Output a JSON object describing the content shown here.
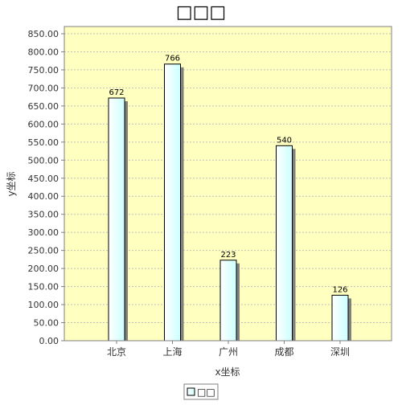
{
  "chart_data": {
    "type": "bar",
    "title": "□□□",
    "xlabel": "x坐标",
    "ylabel": "y坐标",
    "categories": [
      "北京",
      "上海",
      "广州",
      "成都",
      "深圳"
    ],
    "values": [
      672,
      766,
      223,
      540,
      126
    ],
    "data_labels": [
      "672",
      "766",
      "223",
      "540",
      "126"
    ],
    "ylim": [
      0,
      870
    ],
    "yticks": [
      0,
      50,
      100,
      150,
      200,
      250,
      300,
      350,
      400,
      450,
      500,
      550,
      600,
      650,
      700,
      750,
      800,
      850
    ],
    "ytick_labels": [
      "0.00",
      "50.00",
      "100.00",
      "150.00",
      "200.00",
      "250.00",
      "300.00",
      "350.00",
      "400.00",
      "450.00",
      "500.00",
      "550.00",
      "600.00",
      "650.00",
      "700.00",
      "750.00",
      "800.00",
      "850.00"
    ],
    "grid": true,
    "legend": {
      "position": "bottom-center",
      "label": "□□"
    },
    "colors": {
      "plot_background": "#ffffc0",
      "bar_fill_light": "#ffffff",
      "bar_fill_dark": "#ccffff",
      "bar_stroke": "#000000",
      "bar_shadow": "#808080",
      "grid": "#c0c0c0",
      "axis": "#808080",
      "text": "#000000",
      "tick_text": "#333333"
    }
  }
}
